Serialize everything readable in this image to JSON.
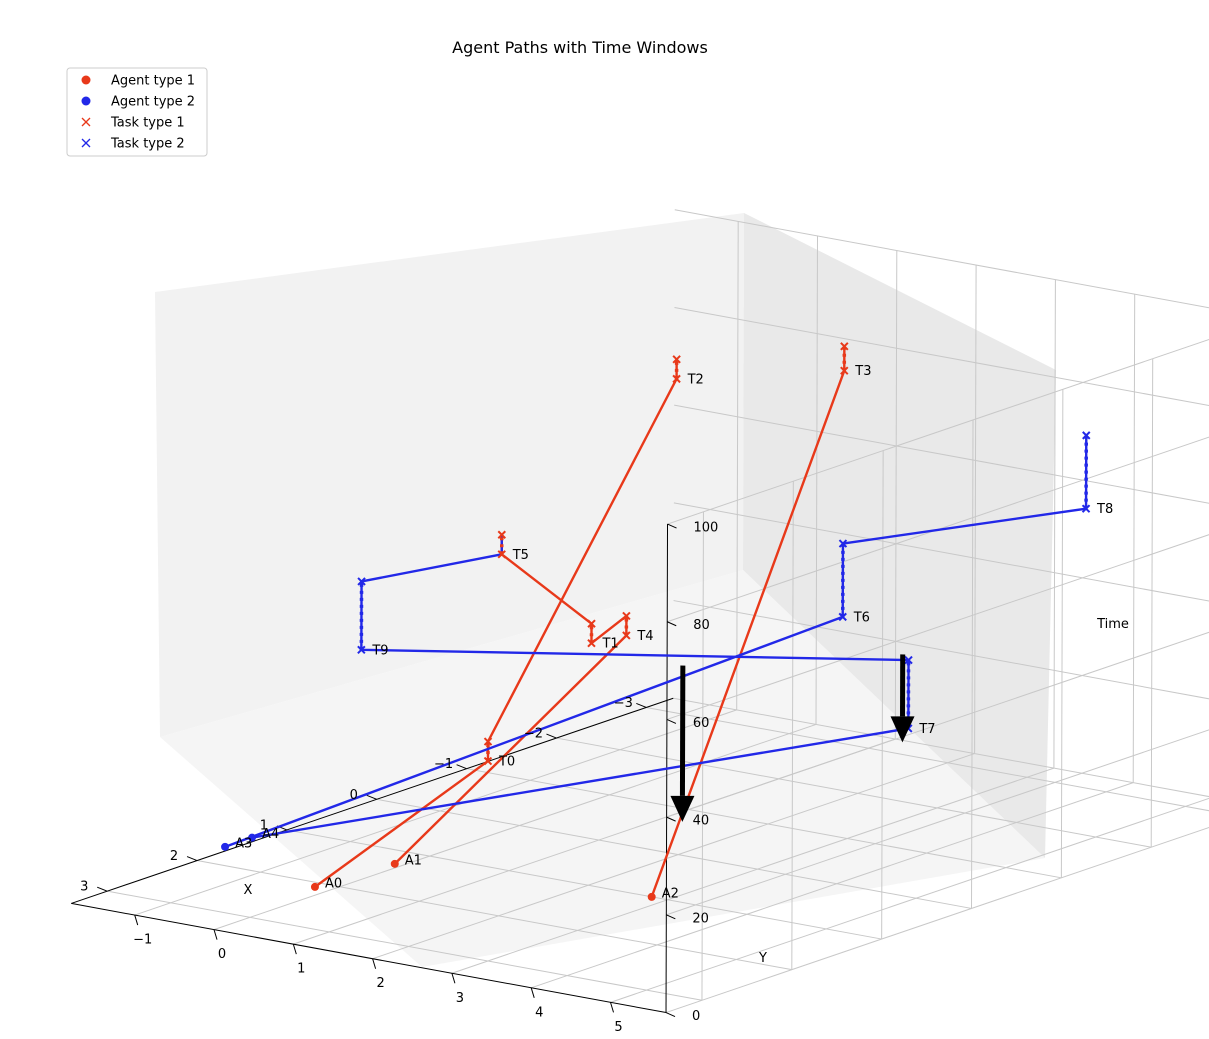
{
  "chart_data": {
    "type": "line",
    "title": "Agent Paths with Time Windows",
    "xlabel": "X",
    "ylabel": "Y",
    "zlabel": "Time",
    "x_ticks": [
      "−3",
      "−2",
      "−1",
      "0",
      "1",
      "2",
      "3"
    ],
    "y_ticks": [
      "−1",
      "0",
      "1",
      "2",
      "3",
      "4",
      "5"
    ],
    "z_ticks": [
      "0",
      "20",
      "40",
      "60",
      "80",
      "100"
    ],
    "grid": true,
    "legend_position": "top-left",
    "colors": {
      "type1": "#e8391a",
      "type2": "#2228e8",
      "arrow": "#000000"
    },
    "legend": [
      {
        "label": "Agent type 1",
        "marker": "dot",
        "color": "#e8391a"
      },
      {
        "label": "Agent type 2",
        "marker": "dot",
        "color": "#2228e8"
      },
      {
        "label": "Task type 1",
        "marker": "x",
        "color": "#e8391a"
      },
      {
        "label": "Task type 2",
        "marker": "x",
        "color": "#2228e8"
      }
    ],
    "agents": [
      {
        "name": "A0",
        "type": 1,
        "x": 2.1,
        "y": -0.2,
        "t": 0
      },
      {
        "name": "A1",
        "type": 1,
        "x": 1.3,
        "y": -0.1,
        "t": 0
      },
      {
        "name": "A2",
        "type": 1,
        "x": 1.0,
        "y": 2.8,
        "t": 0
      },
      {
        "name": "A3",
        "type": 2,
        "x": 1.6,
        "y": -1.9,
        "t": 0
      },
      {
        "name": "A4",
        "type": 2,
        "x": 1.3,
        "y": -1.9,
        "t": 0
      }
    ],
    "tasks": [
      {
        "name": "T0",
        "type": 1,
        "x": 0.0,
        "y": -0.4,
        "t_start": 12,
        "t_end": 16
      },
      {
        "name": "T1",
        "type": 1,
        "x": 0.0,
        "y": 0.9,
        "t_start": 40,
        "t_end": 44
      },
      {
        "name": "T2",
        "type": 1,
        "x": -2.0,
        "y": -0.3,
        "t_start": 78,
        "t_end": 82
      },
      {
        "name": "T3",
        "type": 1,
        "x": -2.1,
        "y": 1.7,
        "t_start": 85,
        "t_end": 90
      },
      {
        "name": "T4",
        "type": 1,
        "x": -0.3,
        "y": 1.0,
        "t_start": 40,
        "t_end": 44
      },
      {
        "name": "T5",
        "type": 1,
        "x": -0.5,
        "y": -0.8,
        "t_start": 50,
        "t_end": 54
      },
      {
        "name": "T6",
        "type": 2,
        "x": -0.5,
        "y": 3.5,
        "t_start": 50,
        "t_end": 65
      },
      {
        "name": "T7",
        "type": 2,
        "x": -1.5,
        "y": 3.2,
        "t_start": 20,
        "t_end": 34
      },
      {
        "name": "T8",
        "type": 2,
        "x": -2.5,
        "y": 4.3,
        "t_start": 62,
        "t_end": 77
      },
      {
        "name": "T9",
        "type": 2,
        "x": 0.0,
        "y": -2.0,
        "t_start": 30,
        "t_end": 44
      }
    ],
    "arrows": [
      {
        "x": -0.4,
        "y": 1.6,
        "from_t": 35,
        "to_t": 3
      },
      {
        "x": -1.7,
        "y": 2.9,
        "from_t": 33,
        "to_t": 15
      }
    ]
  }
}
